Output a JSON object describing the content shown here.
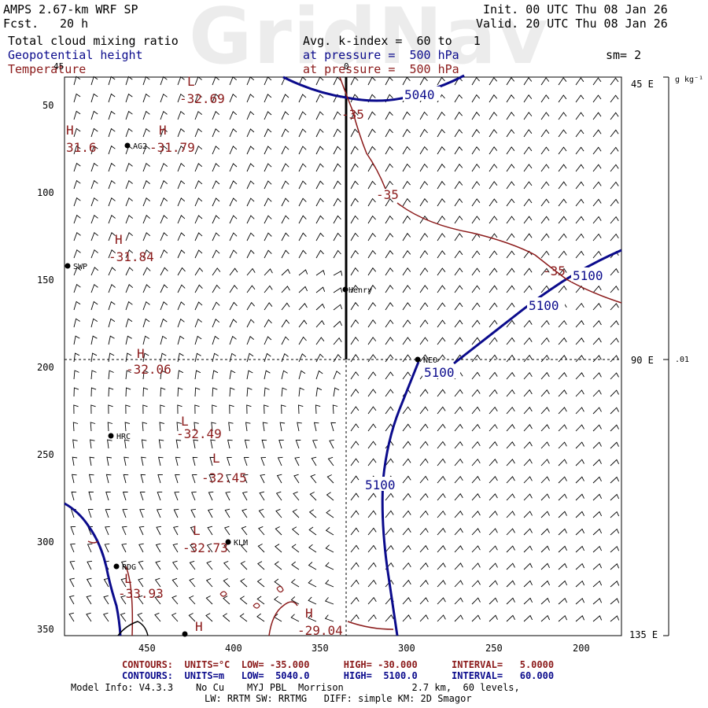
{
  "header": {
    "model": "AMPS 2.67-km WRF SP",
    "fcst_label": "Fcst.",
    "fcst_value": "20 h",
    "init": "Init. 00 UTC Thu 08 Jan 26",
    "valid": "Valid. 20 UTC Thu 08 Jan 26",
    "field1": "Total cloud mixing ratio",
    "field2": "Geopotential height",
    "field3": "Temperature",
    "avg": "Avg. k-index =  60 to   1",
    "press2": "at pressure =  500 hPa",
    "press3": "at pressure =  500 hPa",
    "sm": "sm= 2",
    "watermark": "GridNav"
  },
  "axes": {
    "x_ticks": [
      "450",
      "400",
      "350",
      "300",
      "250",
      "200"
    ],
    "y_ticks": [
      "50",
      "100",
      "150",
      "200",
      "250",
      "300",
      "350"
    ],
    "right_ticks": [
      "45 E",
      "90 E",
      "135 E"
    ],
    "colorbar_unit": "g kg⁻¹",
    "colorbar_value": ".01",
    "top_labels": [
      "45",
      "0"
    ]
  },
  "stations": [
    {
      "name": "AG2"
    },
    {
      "name": "SWP"
    },
    {
      "name": "Henry"
    },
    {
      "name": "NEO"
    },
    {
      "name": "HRC"
    },
    {
      "name": "KLM"
    },
    {
      "name": "RDG"
    }
  ],
  "highs_lows": [
    {
      "sym": "L",
      "val": "-32.69"
    },
    {
      "sym": "H",
      "val": "31.6"
    },
    {
      "sym": "H",
      "val": "-31.79"
    },
    {
      "sym": "H",
      "val": "-31.84"
    },
    {
      "sym": "H",
      "val": "-32.06"
    },
    {
      "sym": "L",
      "val": "-32.49"
    },
    {
      "sym": "L",
      "val": "-32.45"
    },
    {
      "sym": "L",
      "val": "-32.73"
    },
    {
      "sym": "L",
      "val": "-33.93"
    },
    {
      "sym": "H",
      "val": "-29.04"
    },
    {
      "sym": "H",
      "val": ""
    }
  ],
  "contour_labels": {
    "height": [
      "5040",
      "5100",
      "5100",
      "5100",
      "5100"
    ],
    "temp": [
      "-35",
      "-35",
      "-35"
    ]
  },
  "footer": {
    "red_line": "CONTOURS:  UNITS=°C  LOW= -35.000      HIGH= -30.000      INTERVAL=   5.0000",
    "blue_line": "CONTOURS:  UNITS=m   LOW=  5040.0      HIGH=  5100.0      INTERVAL=   60.000",
    "info1": "Model Info: V4.3.3    No Cu    MYJ PBL  Morrison            2.7 km,  60 levels,",
    "info2": "LW: RRTM SW: RRTMG   DIFF: simple KM: 2D Smagor"
  },
  "colors": {
    "height_contour": "#0b0b8c",
    "temp_contour": "#8b1a1a",
    "wind_barb": "#000000"
  }
}
